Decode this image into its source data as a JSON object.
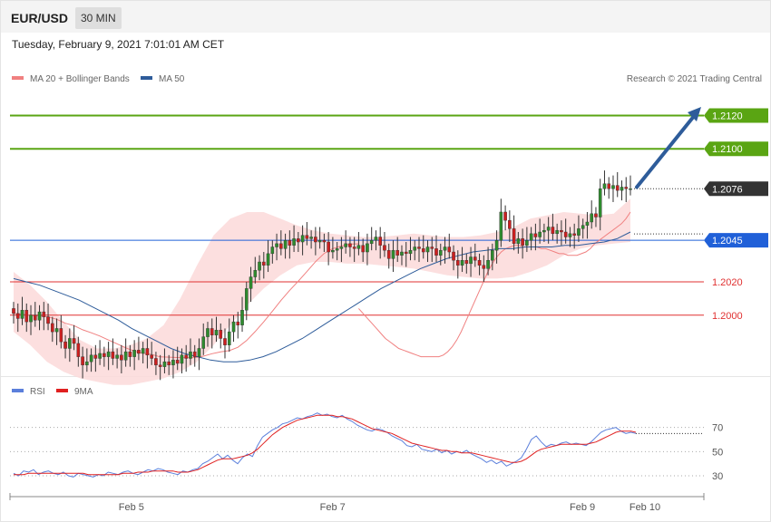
{
  "header": {
    "symbol": "EUR/USD",
    "timeframe": "30 MIN"
  },
  "datetime": "Tuesday, February 9, 2021 7:01:01 AM CET",
  "legend": {
    "main": [
      {
        "label": "MA 20 + Bollinger Bands",
        "color": "#f08080"
      },
      {
        "label": "MA 50",
        "color": "#2e5c9a"
      }
    ],
    "rsi": [
      {
        "label": "RSI",
        "color": "#5b7fdb"
      },
      {
        "label": "9MA",
        "color": "#e02020"
      }
    ]
  },
  "credit": "Research © 2021 Trading Central",
  "chart_data": [
    {
      "type": "candlestick",
      "ylim": [
        1.1965,
        1.2135
      ],
      "x_ticks": [
        {
          "label": "Feb 5",
          "pos": 0.175
        },
        {
          "label": "Feb 7",
          "pos": 0.465
        },
        {
          "label": "Feb 9",
          "pos": 0.825
        },
        {
          "label": "Feb 10",
          "pos": 0.915
        }
      ],
      "levels": [
        {
          "value": 1.212,
          "label": "1.2120",
          "type": "resistance",
          "color": "#5aa513"
        },
        {
          "value": 1.21,
          "label": "1.2100",
          "type": "resistance",
          "color": "#5aa513"
        },
        {
          "value": 1.2076,
          "label": "1.2076",
          "type": "last-price",
          "color": "#333333"
        },
        {
          "value": 1.2045,
          "label": "1.2045",
          "type": "pivot",
          "color": "#2060d8"
        },
        {
          "value": 1.202,
          "label": "1.2020",
          "type": "support",
          "color": "#e03030"
        },
        {
          "value": 1.2,
          "label": "1.2000",
          "type": "support",
          "color": "#e03030"
        }
      ],
      "closes": [
        1.2001,
        1.1998,
        1.2003,
        1.1996,
        1.2,
        1.1997,
        1.2002,
        1.1999,
        1.1995,
        1.199,
        1.1992,
        1.1984,
        1.198,
        1.1986,
        1.1983,
        1.1975,
        1.197,
        1.1972,
        1.1976,
        1.1974,
        1.1977,
        1.1975,
        1.1978,
        1.1974,
        1.1976,
        1.1973,
        1.1978,
        1.1975,
        1.1979,
        1.1977,
        1.198,
        1.1976,
        1.1974,
        1.197,
        1.1969,
        1.1972,
        1.197,
        1.1973,
        1.1971,
        1.1976,
        1.1974,
        1.1978,
        1.1975,
        1.198,
        1.1987,
        1.1992,
        1.1988,
        1.1991,
        1.1986,
        1.1982,
        1.199,
        1.1996,
        1.1994,
        1.2003,
        1.2016,
        1.2023,
        1.2027,
        1.2032,
        1.203,
        1.2037,
        1.2041,
        1.2043,
        1.204,
        1.2045,
        1.2042,
        1.2046,
        1.2044,
        1.2048,
        1.2046,
        1.2047,
        1.2044,
        1.2045,
        1.2044,
        1.2038,
        1.2039,
        1.204,
        1.2041,
        1.2043,
        1.2041,
        1.204,
        1.2042,
        1.2038,
        1.2043,
        1.2045,
        1.2047,
        1.2042,
        1.2039,
        1.2034,
        1.2039,
        1.2036,
        1.2038,
        1.2037,
        1.2039,
        1.2041,
        1.204,
        1.2038,
        1.2041,
        1.204,
        1.2036,
        1.2039,
        1.2041,
        1.2038,
        1.2033,
        1.203,
        1.2033,
        1.2031,
        1.2035,
        1.2033,
        1.203,
        1.2028,
        1.2033,
        1.2039,
        1.2045,
        1.2062,
        1.2057,
        1.2052,
        1.2043,
        1.2046,
        1.2042,
        1.2045,
        1.2049,
        1.2047,
        1.205,
        1.2051,
        1.2053,
        1.2049,
        1.2051,
        1.205,
        1.2047,
        1.2049,
        1.2048,
        1.2052,
        1.2054,
        1.2056,
        1.2061,
        1.2059,
        1.2076,
        1.2079,
        1.2076,
        1.2078,
        1.2075,
        1.2077,
        1.2076,
        1.2076
      ],
      "ma20": [
        1.2004,
        1.2001,
        1.1998,
        1.1995,
        1.1992,
        1.1989,
        1.1986,
        1.1984,
        1.1982,
        1.198,
        1.1979,
        1.1978,
        1.1977,
        1.1976,
        1.1975,
        1.1975,
        1.1975,
        1.1975,
        1.1975,
        1.1976,
        1.1978,
        1.1981,
        1.1985,
        1.199,
        1.1996,
        1.2002,
        1.2008,
        1.2014,
        1.202,
        1.2026,
        1.2031,
        1.2035,
        1.2038,
        1.204,
        1.2041,
        1.2042,
        1.2042,
        1.2041,
        1.2041,
        1.2041,
        1.2041,
        1.204,
        1.204,
        1.2039,
        1.2038,
        1.2037,
        1.2037,
        1.2036,
        1.2036,
        1.2036,
        1.2037,
        1.2038,
        1.204,
        1.2043,
        1.2045,
        1.2047,
        1.2049,
        1.2051,
        1.2053,
        1.2055,
        1.2058,
        1.2062
      ],
      "ma20_start": 80,
      "ma50": [
        1.2022,
        1.202,
        1.2018,
        1.2015,
        1.2012,
        1.2009,
        1.2005,
        1.2001,
        1.1997,
        1.1992,
        1.1988,
        1.1984,
        1.198,
        1.1977,
        1.1975,
        1.1973,
        1.1972,
        1.1972,
        1.1973,
        1.1975,
        1.1978,
        1.1982,
        1.1986,
        1.1991,
        1.1996,
        1.2001,
        1.2006,
        1.2011,
        1.2016,
        1.202,
        1.2024,
        1.2028,
        1.2031,
        1.2034,
        1.2036,
        1.2038,
        1.2039,
        1.204,
        1.204,
        1.2041,
        1.2041,
        1.2041,
        1.2042,
        1.2042,
        1.2043,
        1.2044,
        1.2046,
        1.205
      ],
      "bb_upper": [
        1.2026,
        1.2018,
        1.2008,
        1.1996,
        1.1985,
        1.198,
        1.198,
        1.1982,
        1.1986,
        1.1994,
        1.201,
        1.203,
        1.2048,
        1.2058,
        1.2062,
        1.2062,
        1.2058,
        1.2054,
        1.2051,
        1.2049,
        1.2048,
        1.2047,
        1.2047,
        1.2048,
        1.2049,
        1.2048,
        1.2047,
        1.2047,
        1.2048,
        1.205,
        1.2053,
        1.2058,
        1.206,
        1.2062,
        1.2061,
        1.206,
        1.2061,
        1.207
      ],
      "bb_lower": [
        1.199,
        1.1982,
        1.1972,
        1.1966,
        1.1962,
        1.196,
        1.1958,
        1.1958,
        1.196,
        1.1962,
        1.1966,
        1.1972,
        1.1982,
        1.1994,
        1.2006,
        1.2016,
        1.2024,
        1.203,
        1.2032,
        1.2032,
        1.2031,
        1.2031,
        1.203,
        1.2029,
        1.2028,
        1.2026,
        1.2024,
        1.2023,
        1.2022,
        1.2022,
        1.2023,
        1.2026,
        1.203,
        1.2036,
        1.204,
        1.2042,
        1.2043,
        1.2044
      ],
      "forecast_arrow": {
        "from": 1.2077,
        "to": 1.2123
      }
    },
    {
      "type": "line",
      "name": "RSI",
      "ylim": [
        15,
        90
      ],
      "reference_lines": [
        70,
        50,
        30
      ],
      "rsi": [
        32,
        30,
        34,
        33,
        35,
        31,
        33,
        34,
        32,
        31,
        33,
        30,
        29,
        32,
        31,
        30,
        29,
        31,
        30,
        33,
        32,
        31,
        33,
        34,
        32,
        31,
        33,
        35,
        34,
        36,
        35,
        33,
        32,
        31,
        34,
        33,
        35,
        36,
        40,
        42,
        45,
        48,
        44,
        47,
        43,
        40,
        45,
        48,
        46,
        55,
        62,
        65,
        68,
        70,
        73,
        74,
        76,
        78,
        77,
        79,
        80,
        82,
        80,
        81,
        79,
        78,
        80,
        77,
        75,
        72,
        70,
        68,
        67,
        69,
        68,
        66,
        63,
        61,
        59,
        55,
        54,
        56,
        52,
        51,
        50,
        52,
        49,
        51,
        48,
        50,
        49,
        51,
        48,
        46,
        44,
        41,
        43,
        40,
        42,
        38,
        40,
        42,
        45,
        52,
        60,
        63,
        58,
        54,
        56,
        55,
        57,
        58,
        56,
        57,
        56,
        55,
        58,
        62,
        66,
        68,
        69,
        70,
        67,
        65,
        66,
        65
      ],
      "ma9": [
        31,
        31,
        31,
        32,
        32,
        32,
        32,
        32,
        32,
        32,
        32,
        32,
        32,
        32,
        32,
        31,
        31,
        31,
        31,
        31,
        31,
        31,
        32,
        32,
        32,
        33,
        33,
        33,
        34,
        34,
        34,
        34,
        34,
        33,
        33,
        33,
        34,
        35,
        37,
        39,
        41,
        43,
        44,
        44,
        44,
        45,
        46,
        47,
        49,
        52,
        56,
        60,
        64,
        67,
        70,
        72,
        74,
        76,
        77,
        78,
        79,
        80,
        80,
        80,
        80,
        79,
        79,
        78,
        77,
        75,
        73,
        71,
        69,
        68,
        67,
        66,
        65,
        63,
        61,
        59,
        57,
        56,
        55,
        54,
        53,
        52,
        51,
        51,
        50,
        50,
        49,
        49,
        49,
        48,
        47,
        46,
        45,
        44,
        43,
        42,
        41,
        41,
        42,
        44,
        47,
        50,
        52,
        53,
        54,
        55,
        56,
        56,
        56,
        56,
        56,
        56,
        57,
        58,
        60,
        62,
        64,
        66,
        67,
        67,
        67,
        66
      ]
    }
  ]
}
